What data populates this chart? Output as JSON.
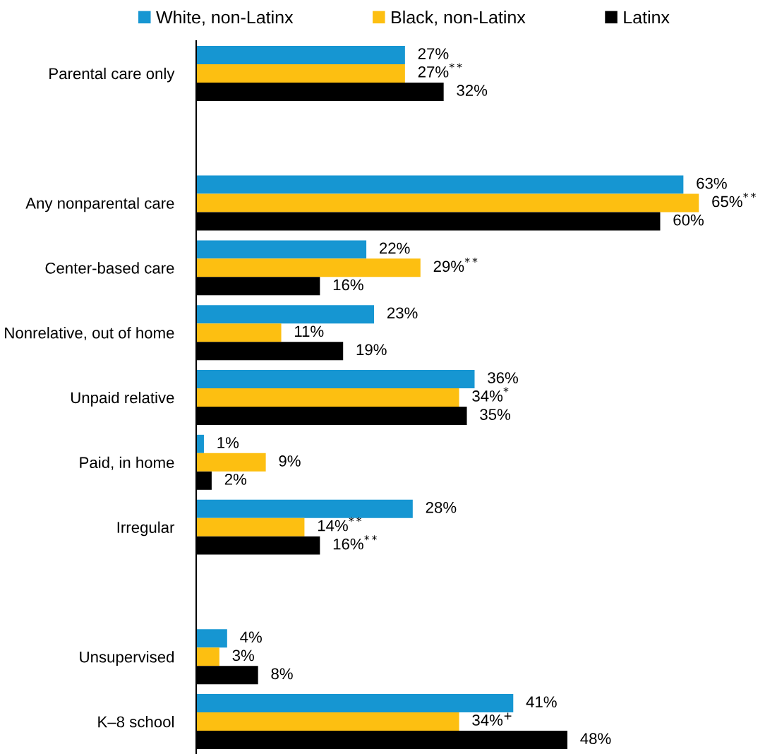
{
  "chart_data": {
    "type": "bar",
    "orientation": "horizontal",
    "legend": "top",
    "categories": [
      "Parental care only",
      null,
      "Any nonparental care",
      "Center-based care",
      "Nonrelative, out of home",
      "Unpaid relative",
      "Paid, in home",
      "Irregular",
      null,
      "Unsupervised",
      "K–8 school"
    ],
    "series": [
      {
        "name": "White, non-Latinx",
        "color": "#1696d2",
        "values": [
          27,
          null,
          63,
          22,
          23,
          36,
          1,
          28,
          null,
          4,
          41
        ],
        "value_labels": [
          "27%",
          null,
          "63%",
          "22%",
          "23%",
          "36%",
          "1%",
          "28%",
          null,
          "4%",
          "41%"
        ]
      },
      {
        "name": "Black, non-Latinx",
        "color": "#fdbf11",
        "values": [
          27,
          null,
          65,
          29,
          11,
          34,
          9,
          14,
          null,
          3,
          34
        ],
        "value_labels": [
          "27%$^{**}$",
          null,
          "65%$^{**}$",
          "29%$^{**}$",
          "11%",
          "34%$^{*}$",
          "9%",
          "14%$^{**}$",
          null,
          "3%",
          "34%$^{+}$"
        ]
      },
      {
        "name": "Latinx",
        "color": "#000000",
        "values": [
          32,
          null,
          60,
          16,
          19,
          35,
          2,
          16,
          null,
          8,
          48
        ],
        "value_labels": [
          "32%",
          null,
          "60%",
          "16%",
          "19%",
          "35%",
          "2%",
          "16%$^{**}$",
          null,
          "8%",
          "48%"
        ]
      }
    ]
  }
}
